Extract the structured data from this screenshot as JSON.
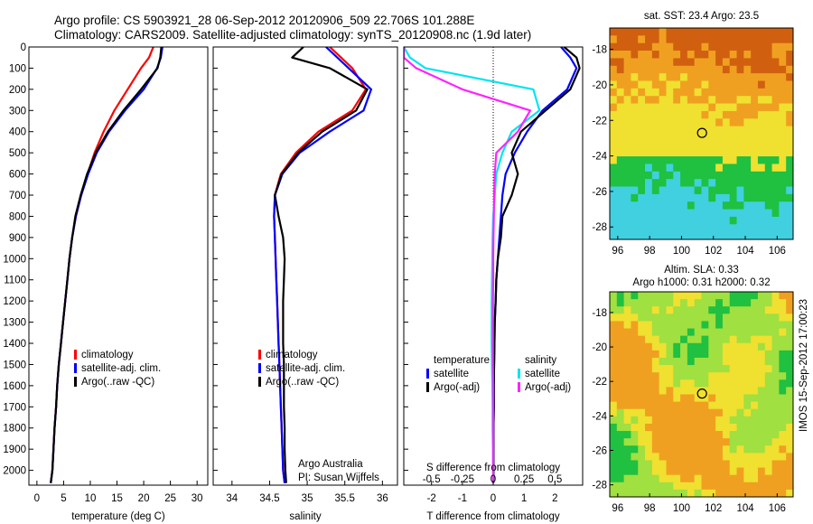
{
  "header": {
    "line1": "Argo profile: CS 5903921_28 06-Sep-2012 20120906_509 22.706S 101.288E",
    "line2": "Climatology: CARS2009. Satellite-adjusted climatology: synTS_20120908.nc (1.9d later)"
  },
  "side_label": "IMOS 15-Sep-2012 17:00:23",
  "footer": {
    "line1": "Argo Australia",
    "line2": "PI: Susan Wijffels"
  },
  "colors": {
    "climatology": "#ff0000",
    "satellite": "#0000ff",
    "argo": "#000000",
    "t_satellite": "#00e5ee",
    "t_argo": "#ff22ff"
  },
  "chart_data": [
    {
      "type": "line",
      "xlabel": "temperature (deg C)",
      "xlim": [
        -1.5,
        32
      ],
      "ylim": [
        0,
        2070
      ],
      "xticks": [
        0,
        5,
        10,
        15,
        20,
        25,
        30
      ],
      "yticks": [
        0,
        100,
        200,
        300,
        400,
        500,
        600,
        700,
        800,
        900,
        1000,
        1100,
        1200,
        1300,
        1400,
        1500,
        1600,
        1700,
        1800,
        1900,
        2000
      ],
      "y_reversed": true,
      "legend": [
        "climatology",
        "satellite-adj. clim.",
        "Argo(..raw -QC)"
      ],
      "series": [
        {
          "name": "climatology",
          "color": "#ff0000",
          "x": [
            21.8,
            21.0,
            19.5,
            17.0,
            14.5,
            12.5,
            10.8,
            9.5,
            8.3,
            7.3,
            6.6,
            6.1,
            5.7,
            5.3,
            4.9,
            4.5,
            4.1,
            3.8,
            3.6,
            3.3,
            3.1,
            2.9,
            2.6
          ],
          "y": [
            0,
            50,
            100,
            200,
            300,
            400,
            500,
            600,
            700,
            800,
            900,
            1000,
            1100,
            1200,
            1300,
            1400,
            1500,
            1600,
            1700,
            1800,
            1900,
            2000,
            2060
          ]
        },
        {
          "name": "satellite-adj. clim.",
          "color": "#0000ff",
          "x": [
            23.5,
            23.2,
            22.5,
            20.0,
            16.5,
            13.5,
            11.2,
            9.6,
            8.3,
            7.3,
            6.6,
            6.1,
            5.7,
            5.3,
            4.9,
            4.5,
            4.1,
            3.8,
            3.6,
            3.3,
            3.1,
            2.9,
            2.6
          ],
          "y": [
            0,
            50,
            100,
            200,
            300,
            400,
            500,
            600,
            700,
            800,
            900,
            1000,
            1100,
            1200,
            1300,
            1400,
            1500,
            1600,
            1700,
            1800,
            1900,
            2000,
            2060
          ]
        },
        {
          "name": "Argo(..raw -QC)",
          "color": "#000000",
          "x": [
            23.3,
            23.1,
            22.6,
            19.5,
            16.2,
            13.3,
            11.0,
            9.4,
            8.2,
            7.2,
            6.6,
            6.1,
            5.7,
            5.3,
            4.9,
            4.5,
            4.1,
            3.8,
            3.6,
            3.3,
            3.1,
            2.9,
            2.6
          ],
          "y": [
            0,
            50,
            100,
            200,
            300,
            400,
            500,
            600,
            700,
            800,
            900,
            1000,
            1100,
            1200,
            1300,
            1400,
            1500,
            1600,
            1700,
            1800,
            1900,
            2000,
            2060
          ]
        }
      ]
    },
    {
      "type": "line",
      "xlabel": "salinity",
      "xlim": [
        33.75,
        36.2
      ],
      "ylim": [
        0,
        2070
      ],
      "xticks": [
        34,
        34.5,
        35,
        35.5,
        36
      ],
      "y_reversed": true,
      "legend": [
        "climatology",
        "satellite-adj. clim.",
        "Argo(..raw -QC)"
      ],
      "series": [
        {
          "name": "climatology",
          "color": "#ff0000",
          "x": [
            35.3,
            35.45,
            35.6,
            35.78,
            35.6,
            35.15,
            34.85,
            34.65,
            34.57,
            34.56,
            34.57,
            34.58,
            34.59,
            34.6,
            34.61,
            34.62,
            34.63,
            34.64,
            34.65,
            34.66,
            34.67,
            34.68,
            34.7
          ],
          "y": [
            0,
            50,
            100,
            200,
            300,
            400,
            500,
            600,
            700,
            800,
            900,
            1000,
            1100,
            1200,
            1300,
            1400,
            1500,
            1600,
            1700,
            1800,
            1900,
            2000,
            2060
          ]
        },
        {
          "name": "satellite-adj. clim.",
          "color": "#0000ff",
          "x": [
            35.25,
            35.4,
            35.55,
            35.85,
            35.75,
            35.3,
            34.9,
            34.67,
            34.57,
            34.56,
            34.57,
            34.58,
            34.59,
            34.6,
            34.61,
            34.62,
            34.63,
            34.64,
            34.65,
            34.66,
            34.67,
            34.68,
            34.7
          ],
          "y": [
            0,
            50,
            100,
            200,
            300,
            400,
            500,
            600,
            700,
            800,
            900,
            1000,
            1100,
            1200,
            1300,
            1400,
            1500,
            1600,
            1700,
            1800,
            1900,
            2000,
            2060
          ]
        },
        {
          "name": "Argo(..raw -QC)",
          "color": "#000000",
          "x": [
            34.95,
            34.8,
            35.3,
            35.8,
            35.65,
            35.2,
            34.88,
            34.66,
            34.57,
            34.62,
            34.68,
            34.7,
            34.69,
            34.68,
            34.68,
            34.68,
            34.69,
            34.69,
            34.69,
            34.7,
            34.7,
            34.71,
            34.72
          ],
          "y": [
            0,
            50,
            100,
            200,
            300,
            400,
            500,
            600,
            700,
            800,
            900,
            1000,
            1100,
            1200,
            1300,
            1400,
            1500,
            1600,
            1700,
            1800,
            1900,
            2000,
            2060
          ]
        }
      ]
    },
    {
      "type": "line",
      "xlabel": "T difference from climatology",
      "xlabel_top": "S difference from climatology",
      "xlim": [
        -2.9,
        2.9
      ],
      "ylim": [
        0,
        2070
      ],
      "xticks": [
        -2,
        -1,
        0,
        1,
        2
      ],
      "xticks_top": [
        -0.5,
        -0.25,
        0,
        0.25,
        0.5
      ],
      "y_reversed": true,
      "legend_temperature_title": "temperature",
      "legend_salinity_title": "salinity",
      "legend": [
        "satellite",
        "Argo(-adj)",
        "satellite",
        "Argo(-adj)"
      ],
      "series": [
        {
          "name": "satellite",
          "group": "temperature",
          "color": "#0000ff",
          "x": [
            2.2,
            2.5,
            2.7,
            2.4,
            1.6,
            1.1,
            0.7,
            0.4,
            0.3,
            0.25,
            0.2,
            0.15,
            0.1,
            0.08,
            0.05,
            0.04,
            0.03,
            0.02,
            0.02,
            0.01,
            0.01,
            0.01,
            0.0
          ],
          "y": [
            0,
            50,
            100,
            200,
            300,
            400,
            500,
            600,
            700,
            800,
            900,
            1000,
            1100,
            1200,
            1300,
            1400,
            1500,
            1600,
            1700,
            1800,
            1900,
            2000,
            2060
          ]
        },
        {
          "name": "Argo(-adj)",
          "group": "temperature",
          "color": "#000000",
          "x": [
            2.3,
            2.7,
            2.8,
            2.5,
            1.7,
            0.9,
            0.6,
            0.8,
            0.6,
            0.3,
            0.25,
            0.15,
            0.1,
            0.08,
            0.05,
            0.04,
            0.03,
            0.02,
            0.02,
            0.01,
            0.01,
            0.01,
            0.0
          ],
          "y": [
            0,
            50,
            100,
            200,
            300,
            400,
            500,
            600,
            700,
            800,
            900,
            1000,
            1100,
            1200,
            1300,
            1400,
            1500,
            1600,
            1700,
            1800,
            1900,
            2000,
            2060
          ]
        },
        {
          "name": "satellite",
          "group": "salinity",
          "color": "#00e5ee",
          "x": [
            -2.9,
            -2.7,
            -2.2,
            1.3,
            1.5,
            0.6,
            0.3,
            0.1,
            0.05,
            0.0,
            -0.02,
            -0.03,
            -0.04,
            -0.05,
            -0.05,
            -0.05,
            -0.04,
            -0.03,
            -0.02,
            -0.02,
            -0.01,
            -0.01,
            0.0
          ],
          "y": [
            0,
            50,
            100,
            200,
            300,
            400,
            500,
            600,
            700,
            800,
            900,
            1000,
            1100,
            1200,
            1300,
            1400,
            1500,
            1600,
            1700,
            1800,
            1900,
            2000,
            2060
          ]
        },
        {
          "name": "Argo(-adj)",
          "group": "salinity",
          "color": "#ff22ff",
          "x": [
            -2.9,
            -2.9,
            -2.5,
            -1.0,
            1.2,
            0.8,
            0.1,
            0.05,
            0.03,
            0.02,
            0.01,
            0.0,
            0.0,
            -0.01,
            -0.01,
            -0.01,
            -0.01,
            0.0,
            0.0,
            0.0,
            0.0,
            0.0,
            0.0
          ],
          "y": [
            0,
            50,
            100,
            200,
            300,
            400,
            500,
            600,
            700,
            800,
            900,
            1000,
            1100,
            1200,
            1300,
            1400,
            1500,
            1600,
            1700,
            1800,
            1900,
            2000,
            2060
          ]
        }
      ]
    },
    {
      "type": "heatmap",
      "title": "sat. SST: 23.4  Argo: 23.5",
      "xlim": [
        95.5,
        107
      ],
      "ylim": [
        -28.7,
        -16.8
      ],
      "xticks": [
        96,
        98,
        100,
        102,
        104,
        106
      ],
      "yticks": [
        -18,
        -20,
        -22,
        -24,
        -26,
        -28
      ],
      "marker": {
        "lon": 101.288,
        "lat": -22.706
      },
      "colors": [
        "#d06010",
        "#f0a020",
        "#f0e030",
        "#20c040",
        "#40d0e0"
      ]
    },
    {
      "type": "heatmap",
      "title_line1": "Altim. SLA: 0.33",
      "title_line2": "Argo h1000: 0.31 h2000: 0.32",
      "xlim": [
        95.5,
        107
      ],
      "ylim": [
        -28.7,
        -16.8
      ],
      "xticks": [
        96,
        98,
        100,
        102,
        104,
        106
      ],
      "yticks": [
        -18,
        -20,
        -22,
        -24,
        -26,
        -28
      ],
      "marker": {
        "lon": 101.288,
        "lat": -22.706
      },
      "colors": [
        "#20c040",
        "#a0e040",
        "#f0e030",
        "#f0a020"
      ]
    }
  ]
}
